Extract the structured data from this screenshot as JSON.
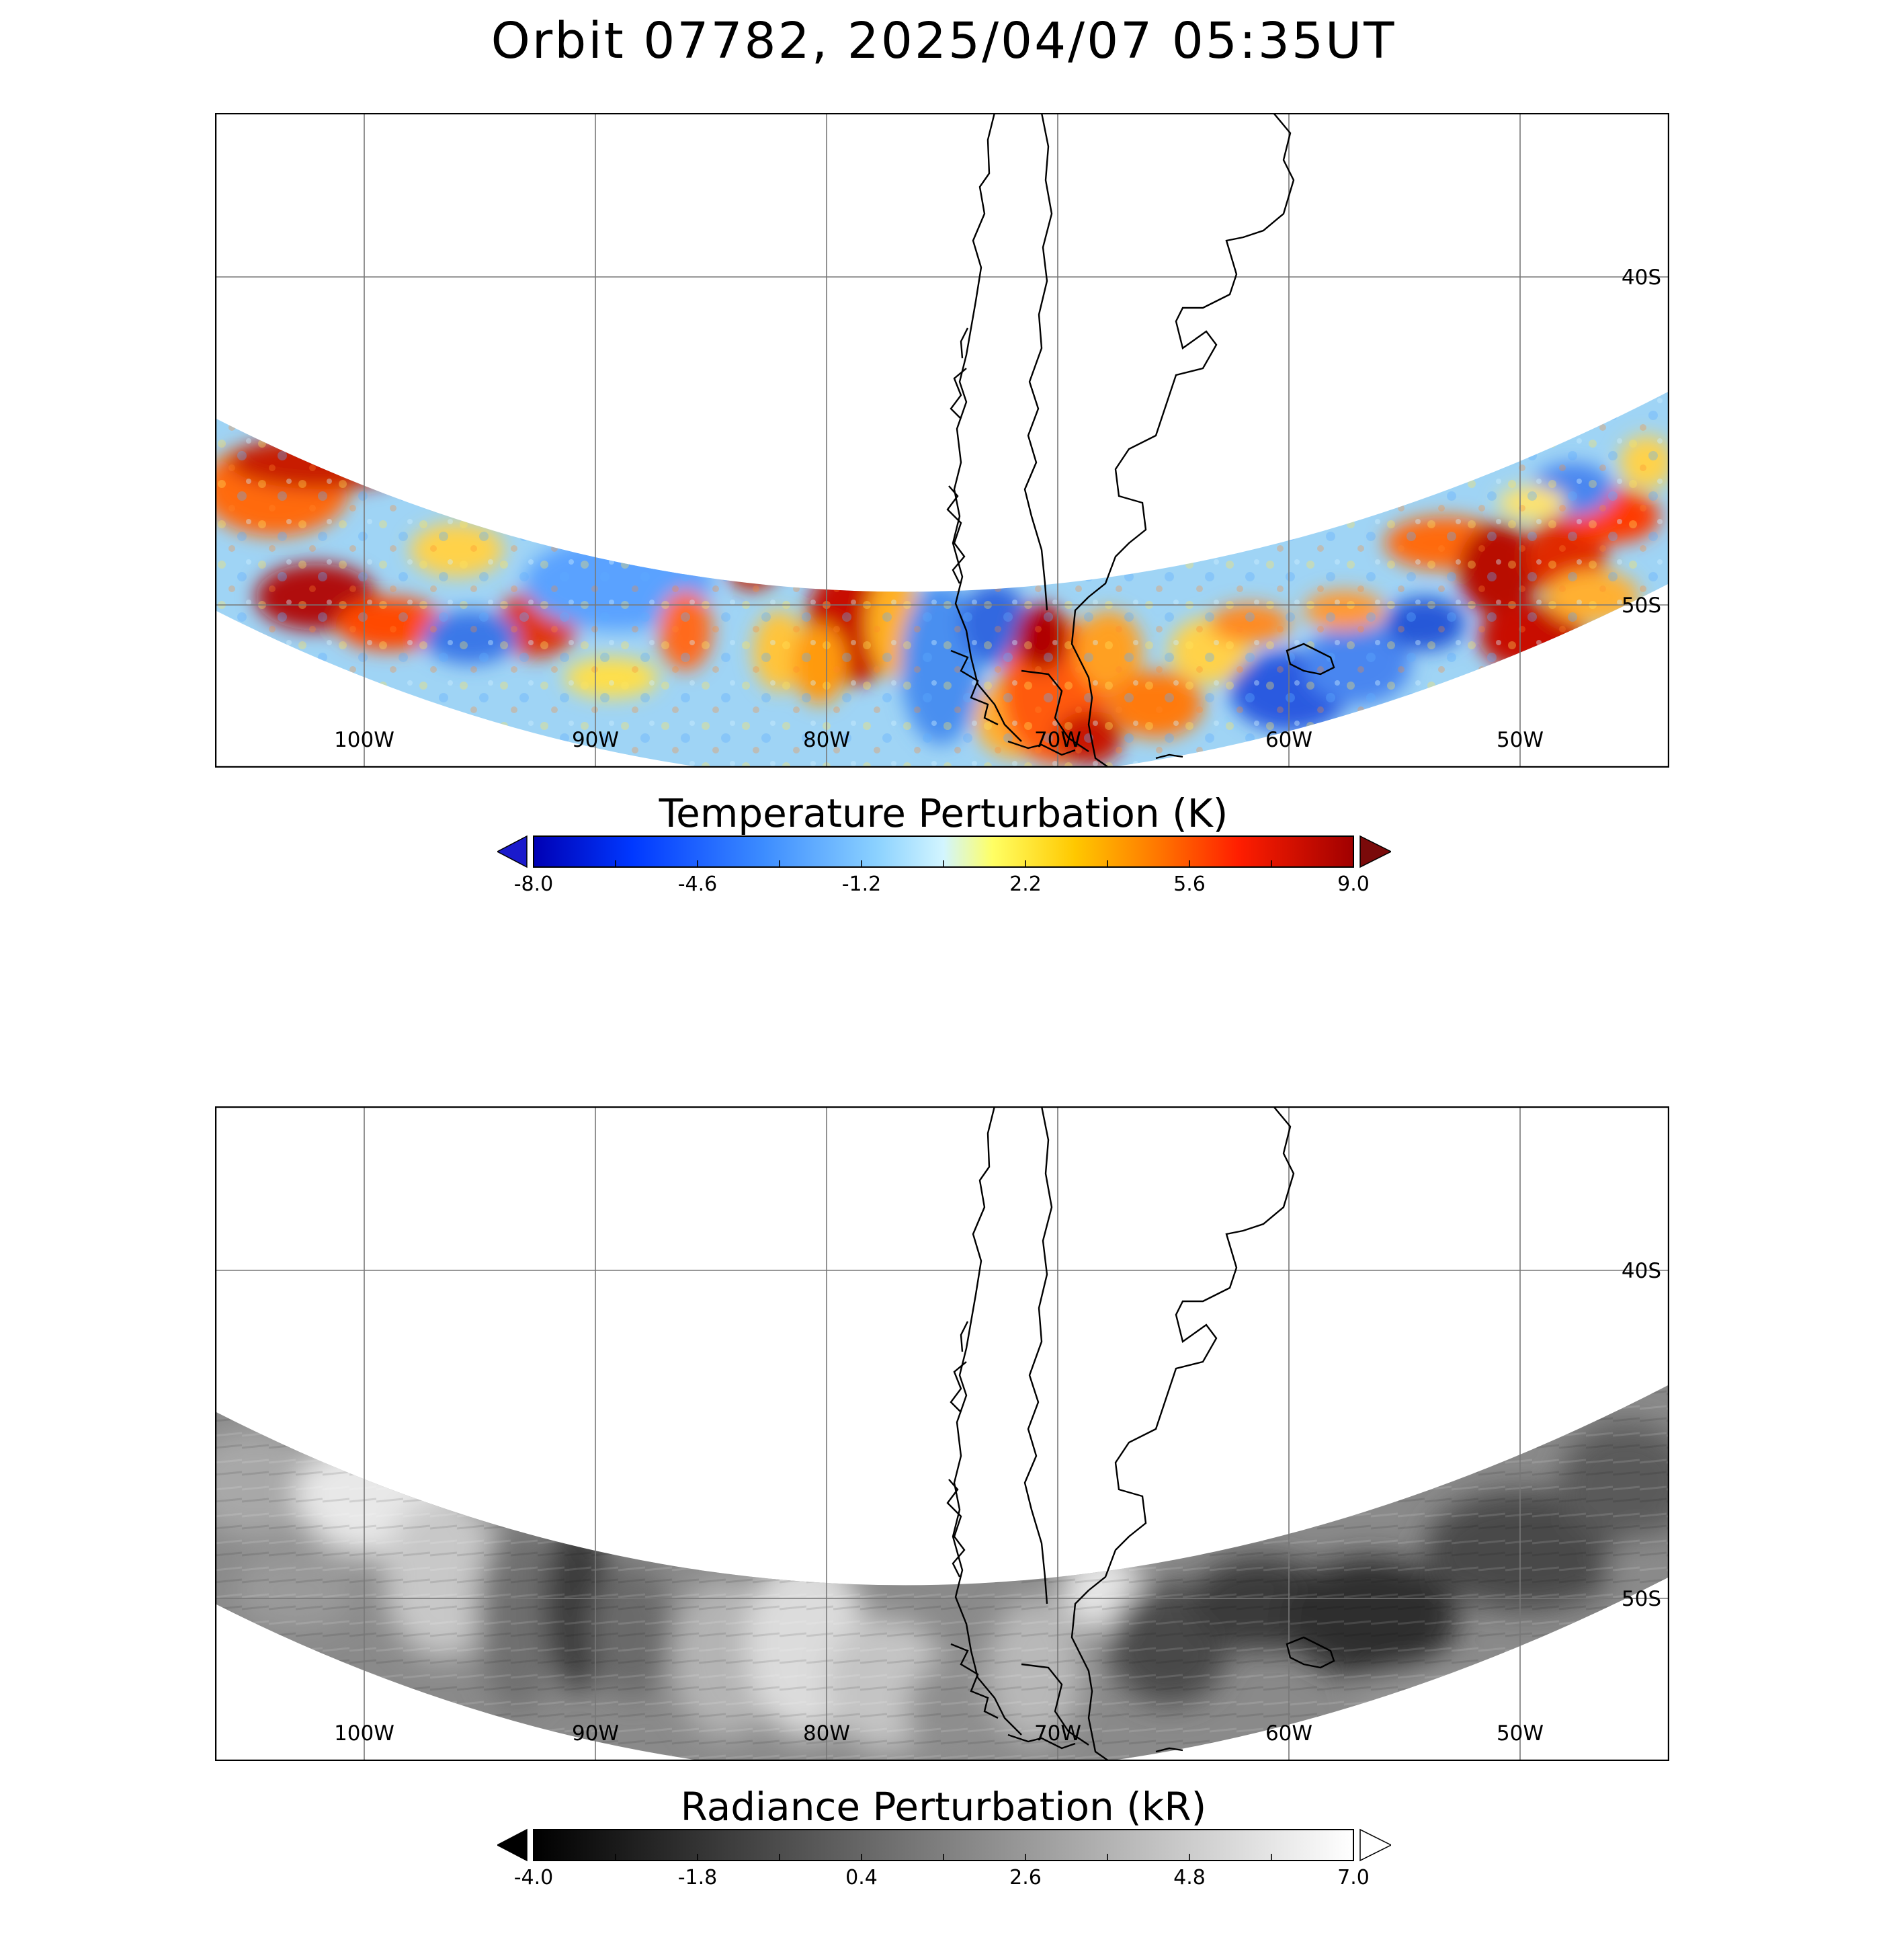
{
  "title": "Orbit 07782, 2025/04/07 05:35UT",
  "map": {
    "lon_labels": [
      "100W",
      "90W",
      "80W",
      "70W",
      "60W",
      "50W"
    ],
    "lat_labels": [
      "40S",
      "50S"
    ],
    "land_color": "#ffffff",
    "coastline_color": "#000000"
  },
  "panels": [
    {
      "id": "temperature",
      "colorbar_title": "Temperature Perturbation (K)",
      "colorbar_ticks": [
        "-8.0",
        "-4.6",
        "-1.2",
        "2.2",
        "5.6",
        "9.0"
      ],
      "colormap": [
        "#0000b4",
        "#0038ff",
        "#3c8cff",
        "#8cd2ff",
        "#d2f5ff",
        "#ffff64",
        "#ffc800",
        "#ff7800",
        "#ff1e00",
        "#a00000"
      ],
      "extend_low_color": "#1a1acc",
      "extend_high_color": "#7a0a0a"
    },
    {
      "id": "radiance",
      "colorbar_title": "Radiance Perturbation (kR)",
      "colorbar_ticks": [
        "-4.0",
        "-1.8",
        "0.4",
        "2.6",
        "4.8",
        "7.0"
      ],
      "colormap": [
        "#000000",
        "#ffffff"
      ],
      "extend_low_color": "#000000",
      "extend_high_color": "#ffffff"
    }
  ]
}
